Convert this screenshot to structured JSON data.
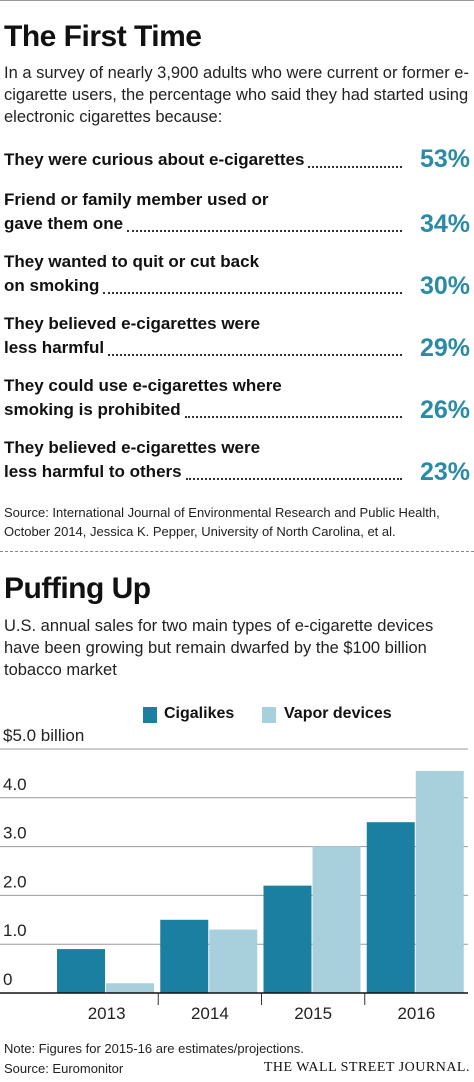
{
  "survey": {
    "title": "The First Time",
    "intro": "In a survey of nearly 3,900 adults who were current or former e-cigarette users, the percentage who said they had started using electronic cigarettes because:",
    "rows": [
      {
        "line1": "They were curious about e-cigarettes",
        "line2": "",
        "value": 53,
        "label": "53%"
      },
      {
        "line1": "Friend or family member used or",
        "line2": "gave them one",
        "value": 34,
        "label": "34%"
      },
      {
        "line1": "They wanted to quit or cut back",
        "line2": "on smoking",
        "value": 30,
        "label": "30%"
      },
      {
        "line1": "They believed e-cigarettes were",
        "line2": "less harmful",
        "value": 29,
        "label": "29%"
      },
      {
        "line1": "They could use e-cigarettes where",
        "line2": "smoking is prohibited",
        "value": 26,
        "label": "26%"
      },
      {
        "line1": "They believed e-cigarettes were",
        "line2": "less harmful to others",
        "value": 23,
        "label": "23%"
      }
    ],
    "source": "Source: International Journal of Environmental Research and Public Health, October 2014, Jessica K. Pepper, University of North Carolina, et al."
  },
  "sales": {
    "title": "Puffing Up",
    "intro": "U.S. annual sales for two main types of e-cigarette devices have been growing but remain dwarfed by the $100 billion tobacco market"
  },
  "chart_data": {
    "type": "bar",
    "categories": [
      "2013",
      "2014",
      "2015",
      "2016"
    ],
    "series": [
      {
        "name": "Cigalikes",
        "color": "#1a7fa0",
        "values": [
          0.9,
          1.5,
          2.2,
          3.5
        ]
      },
      {
        "name": "Vapor devices",
        "color": "#a8cfdc",
        "values": [
          0.2,
          1.3,
          3.0,
          4.55
        ]
      }
    ],
    "ylim": [
      0,
      5.0
    ],
    "yticks": [
      0,
      1.0,
      2.0,
      3.0,
      4.0,
      5.0
    ],
    "ytick_labels": [
      "0",
      "1.0",
      "2.0",
      "3.0",
      "4.0",
      "$5.0 billion"
    ],
    "grid": true,
    "legend": "top"
  },
  "notes": {
    "note": "Note: Figures for 2015-16 are estimates/projections.",
    "source": "Source: Euromonitor",
    "credit": "THE WALL STREET JOURNAL."
  }
}
